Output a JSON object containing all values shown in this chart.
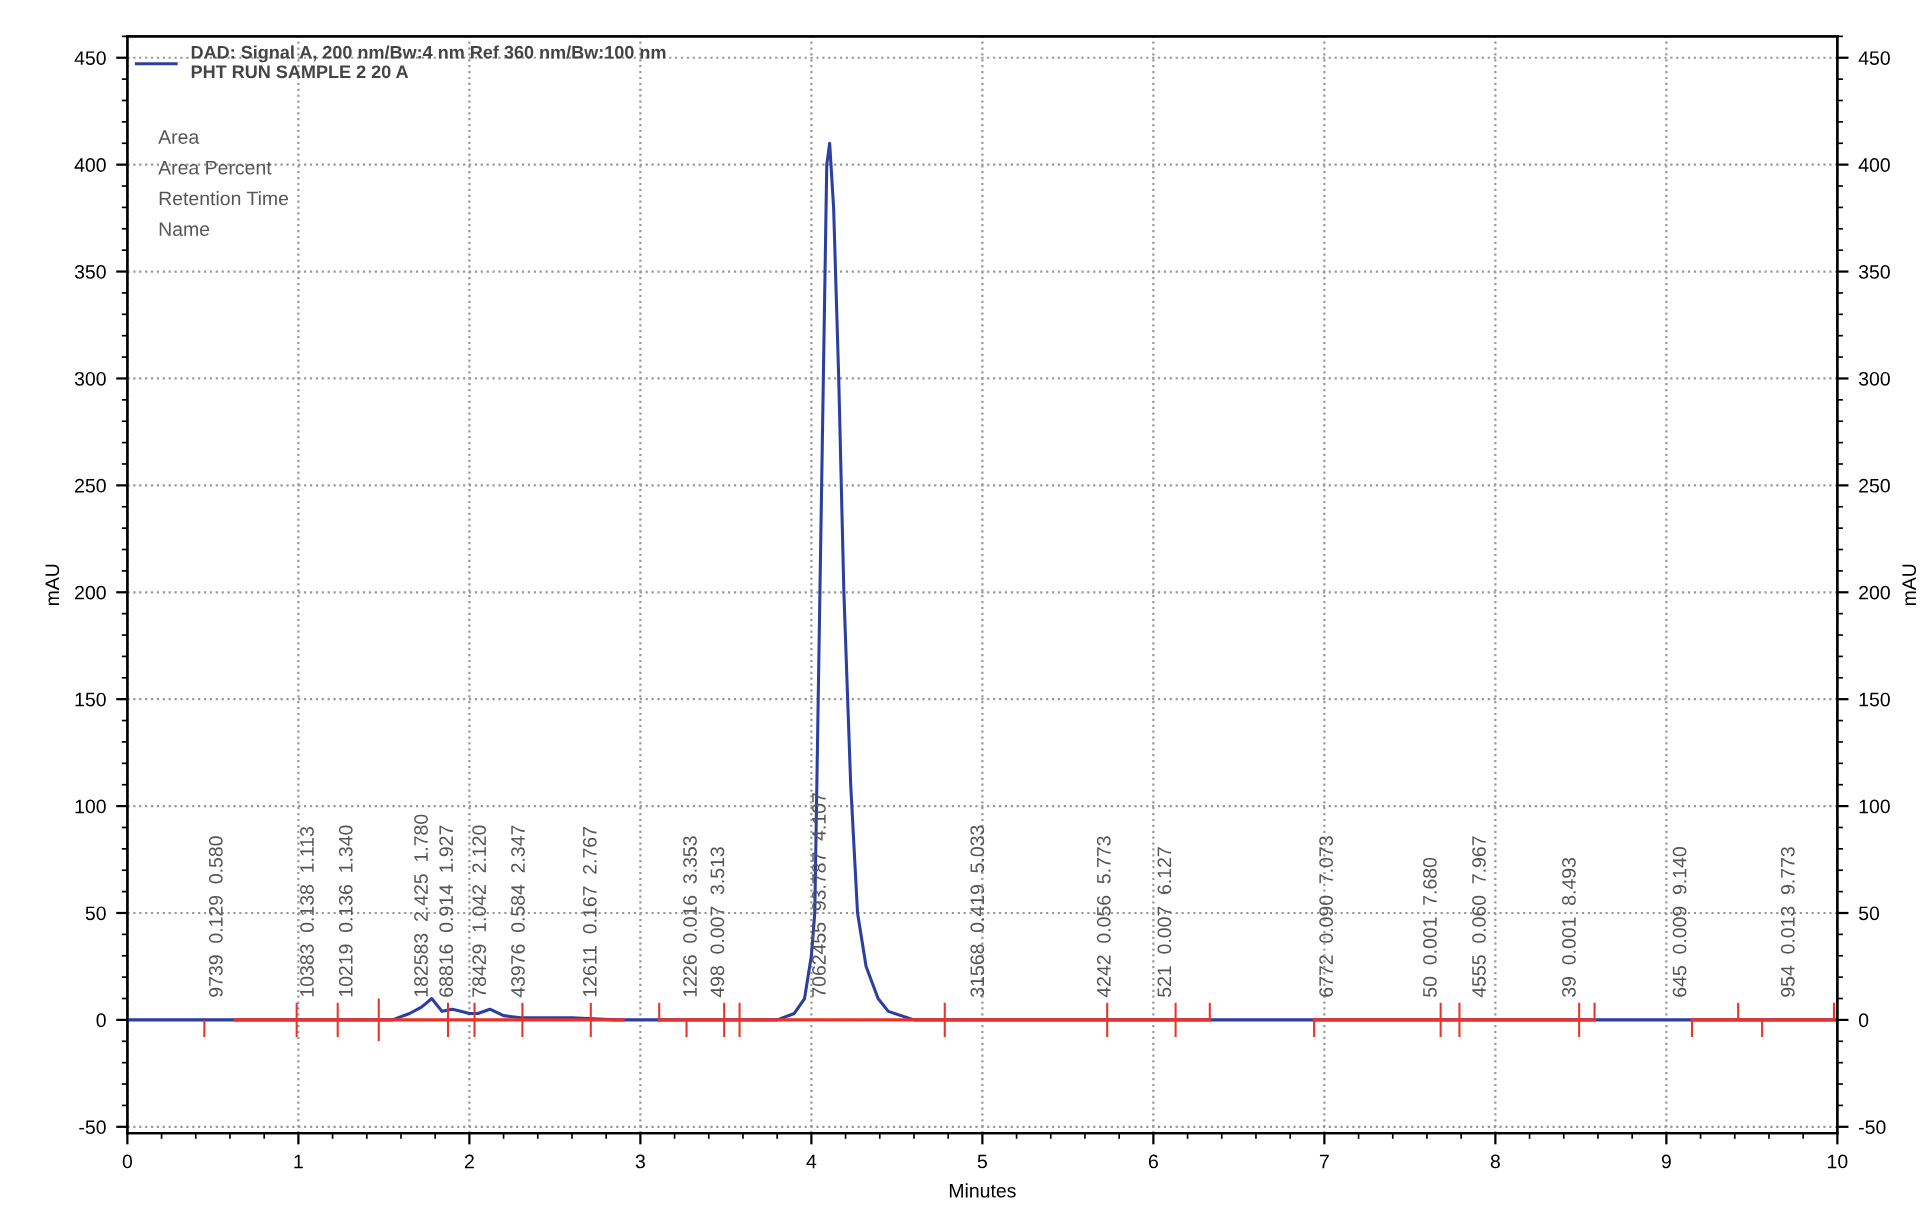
{
  "chart_data": {
    "type": "line",
    "xlabel": "Minutes",
    "ylabel": "mAU",
    "y2label": "mAU",
    "xlim": [
      0,
      10
    ],
    "xticks": [
      0,
      1,
      2,
      3,
      4,
      5,
      6,
      7,
      8,
      9,
      10
    ],
    "ylim": [
      -53,
      460
    ],
    "yticks": [
      -50,
      0,
      50,
      100,
      150,
      200,
      250,
      300,
      350,
      400,
      450
    ],
    "y2lim": [
      -53,
      460
    ],
    "y2ticks": [
      -50,
      0,
      50,
      100,
      150,
      200,
      250,
      300,
      350,
      400,
      450
    ],
    "grid": true,
    "legend": "top left",
    "series": [
      {
        "name": "DAD: Signal A, 200 nm/Bw:4 nm Ref 360 nm/Bw:100 nm\nPHT RUN SAMPLE 2 20 A",
        "color": "#2b3f9e",
        "x": [
          0,
          0.6,
          1.55,
          1.65,
          1.72,
          1.78,
          1.84,
          1.9,
          1.95,
          2.0,
          2.05,
          2.12,
          2.2,
          2.3,
          2.6,
          2.85,
          3.8,
          3.9,
          3.96,
          4.0,
          4.02,
          4.05,
          4.09,
          4.107,
          4.13,
          4.16,
          4.19,
          4.23,
          4.27,
          4.32,
          4.39,
          4.45,
          4.6,
          10
        ],
        "values": [
          0,
          0,
          0,
          3,
          6,
          10,
          4,
          5,
          4,
          3,
          3,
          5,
          2,
          1,
          1,
          0,
          0,
          3,
          10,
          30,
          50,
          200,
          400,
          410,
          380,
          300,
          200,
          110,
          50,
          25,
          10,
          4,
          0,
          0
        ]
      },
      {
        "color": "#e8322a",
        "x": [
          0.63,
          2.9,
          3.0,
          3.11,
          6.33,
          6.6,
          6.94,
          8.58,
          8.9,
          9.15,
          9.98
        ],
        "values": [
          0,
          0,
          null,
          0,
          0,
          null,
          0,
          0,
          null,
          0,
          0
        ]
      },
      {
        "type": "bar",
        "color": "#e8322a",
        "x": [
          0.45,
          0.99,
          1.23,
          1.47,
          1.875,
          2.03,
          2.31,
          2.71,
          3.11,
          3.27,
          3.49,
          3.58,
          4.78,
          5.73,
          6.13,
          6.33,
          6.94,
          7.68,
          7.79,
          8.49,
          8.58,
          9.15,
          9.42,
          9.56,
          9.98
        ],
        "base": [
          -8,
          -8,
          -8,
          -10,
          -8,
          -8,
          -8,
          -8,
          0,
          -8,
          -8,
          -8,
          -8,
          -8,
          -8,
          0,
          -8,
          -8,
          -8,
          -8,
          0,
          -8,
          0,
          -8,
          0
        ],
        "values": [
          8,
          16,
          16,
          20,
          16,
          16,
          16,
          16,
          8,
          8,
          16,
          16,
          16,
          16,
          16,
          8,
          8,
          16,
          16,
          16,
          8,
          8,
          8,
          8,
          8
        ]
      }
    ],
    "annotations": [
      "Area",
      "Area Percent",
      "Retention Time",
      "Name",
      {
        "text": "9739  0.129  0.580",
        "x": 0.58,
        "y": 0
      },
      {
        "text": "10383  0.138  1.113",
        "x": 1.113,
        "y": 0
      },
      {
        "text": "10219  0.136  1.340",
        "x": 1.34,
        "y": 0
      },
      {
        "text": "182583  2.425  1.780",
        "x": 1.78,
        "y": 0
      },
      {
        "text": "68816  0.914  1.927",
        "x": 1.927,
        "y": 0
      },
      {
        "text": "78429  1.042  2.120",
        "x": 2.12,
        "y": 0
      },
      {
        "text": "43976  0.584  2.347",
        "x": 2.347,
        "y": 0
      },
      {
        "text": "12611  0.167  2.767",
        "x": 2.767,
        "y": 0
      },
      {
        "text": "1226  0.016  3.353",
        "x": 3.353,
        "y": 0
      },
      {
        "text": "498  0.007  3.513",
        "x": 3.513,
        "y": 0
      },
      {
        "text": "7062455  93.787  4.107",
        "x": 4.107,
        "y": 0
      },
      {
        "text": "31568  0.419  5.033",
        "x": 5.033,
        "y": 0
      },
      {
        "text": "4242  0.056  5.773",
        "x": 5.773,
        "y": 0
      },
      {
        "text": "521  0.007  6.127",
        "x": 6.127,
        "y": 0
      },
      {
        "text": "6772  0.090  7.073",
        "x": 7.073,
        "y": 0
      },
      {
        "text": "50  0.001  7.680",
        "x": 7.68,
        "y": 0
      },
      {
        "text": "4555  0.060  7.967",
        "x": 7.967,
        "y": 0
      },
      {
        "text": "39  0.001  8.493",
        "x": 8.493,
        "y": 0
      },
      {
        "text": "645  0.009  9.140",
        "x": 9.14,
        "y": 0
      },
      {
        "text": "954  0.013  9.773",
        "x": 9.773,
        "y": 0
      }
    ]
  }
}
